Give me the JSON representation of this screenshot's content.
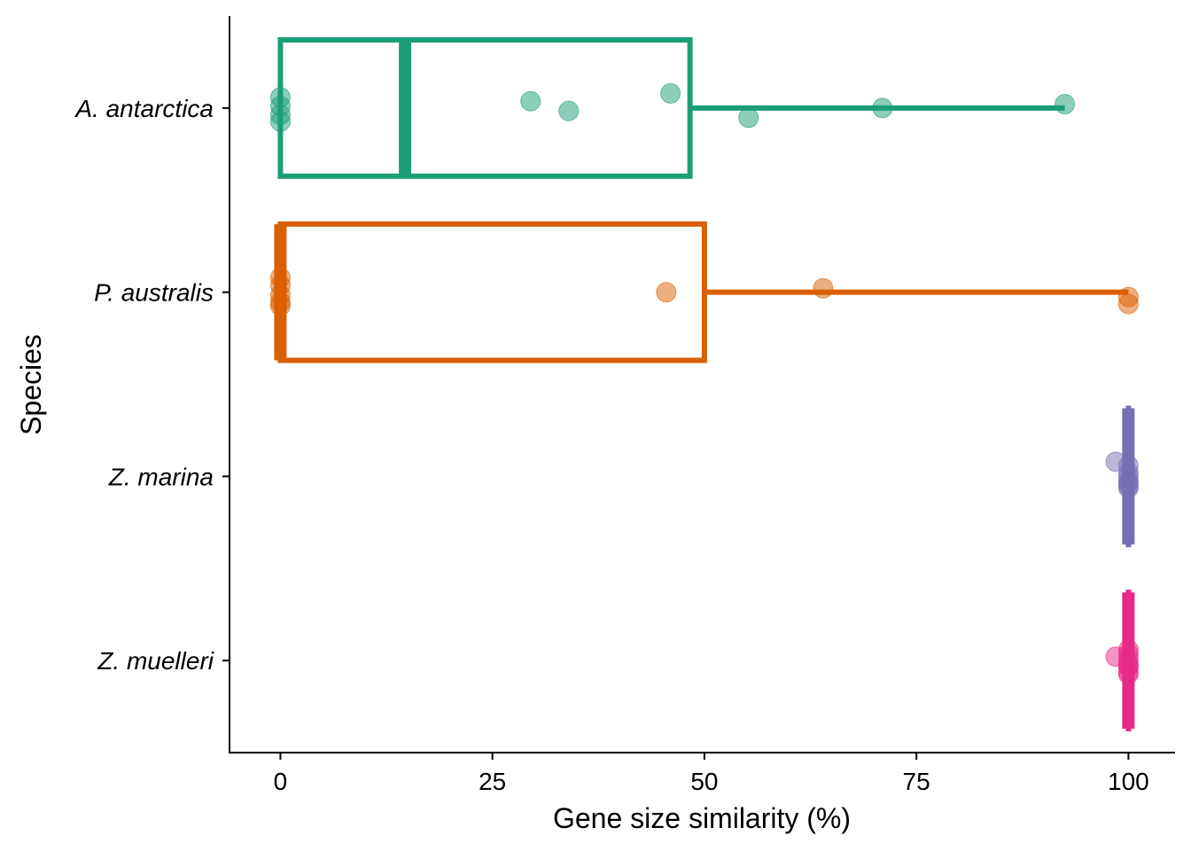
{
  "chart_data": {
    "type": "boxplot",
    "orientation": "horizontal",
    "xlabel": "Gene size similarity (%)",
    "ylabel": "Species",
    "xlim": [
      -6,
      105.5
    ],
    "x_ticks": [
      0,
      25,
      50,
      75,
      100
    ],
    "categories": [
      "A. antarctica",
      "P. australis",
      "Z. marina",
      "Z. muelleri"
    ],
    "colors": [
      "#1b9e77",
      "#d95f02",
      "#7570b3",
      "#e7298a"
    ],
    "grid": false,
    "legend": "none",
    "boxes": [
      {
        "category": "A. antarctica",
        "min": 0,
        "q1": 0,
        "median": 14.7,
        "q3": 48.3,
        "max": 92.5
      },
      {
        "category": "P. australis",
        "min": 0,
        "q1": 0,
        "median": 0,
        "q3": 50.0,
        "max": 100
      },
      {
        "category": "Z. marina",
        "min": 100,
        "q1": 100,
        "median": 100,
        "q3": 100,
        "max": 100
      },
      {
        "category": "Z. muelleri",
        "min": 100,
        "q1": 100,
        "median": 100,
        "q3": 100,
        "max": 100
      }
    ],
    "points": [
      {
        "category": "A. antarctica",
        "values": [
          0,
          0,
          0,
          0,
          29.5,
          34.0,
          46.0,
          55.2,
          71.0,
          92.5
        ]
      },
      {
        "category": "P. australis",
        "values": [
          0,
          0,
          0,
          0,
          0,
          45.5,
          64.0,
          100,
          100
        ]
      },
      {
        "category": "Z. marina",
        "values": [
          98.5,
          100,
          100,
          100,
          100,
          100,
          100,
          100
        ]
      },
      {
        "category": "Z. muelleri",
        "values": [
          98.5,
          100,
          100,
          100,
          100,
          100,
          100,
          100,
          100
        ]
      }
    ]
  }
}
